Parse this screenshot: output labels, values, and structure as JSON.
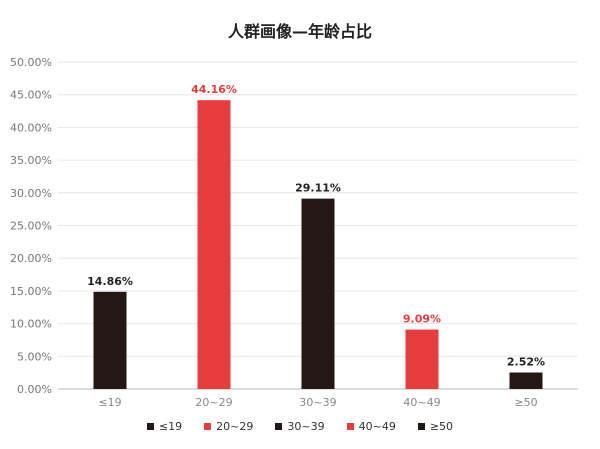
{
  "chart_data": {
    "type": "bar",
    "title": "人群画像—年龄占比",
    "categories": [
      "≤19",
      "20~29",
      "30~39",
      "40~49",
      "≥50"
    ],
    "values": [
      14.86,
      44.16,
      29.11,
      9.09,
      2.52
    ],
    "value_labels": [
      "14.86%",
      "44.16%",
      "29.11%",
      "9.09%",
      "2.52%"
    ],
    "colors": [
      "#231816",
      "#e53d3e",
      "#231816",
      "#e53d3e",
      "#231816"
    ],
    "ylim": [
      0,
      50
    ],
    "yticks": [
      "0.00%",
      "5.00%",
      "10.00%",
      "15.00%",
      "20.00%",
      "25.00%",
      "30.00%",
      "35.00%",
      "40.00%",
      "45.00%",
      "50.00%"
    ],
    "xlabel": "",
    "ylabel": "",
    "grid": true,
    "legend_position": "bottom",
    "legend": [
      {
        "label": "≤19",
        "color": "#231816"
      },
      {
        "label": "20~29",
        "color": "#e53d3e"
      },
      {
        "label": "30~39",
        "color": "#231816"
      },
      {
        "label": "40~49",
        "color": "#e53d3e"
      },
      {
        "label": "≥50",
        "color": "#231816"
      }
    ]
  }
}
